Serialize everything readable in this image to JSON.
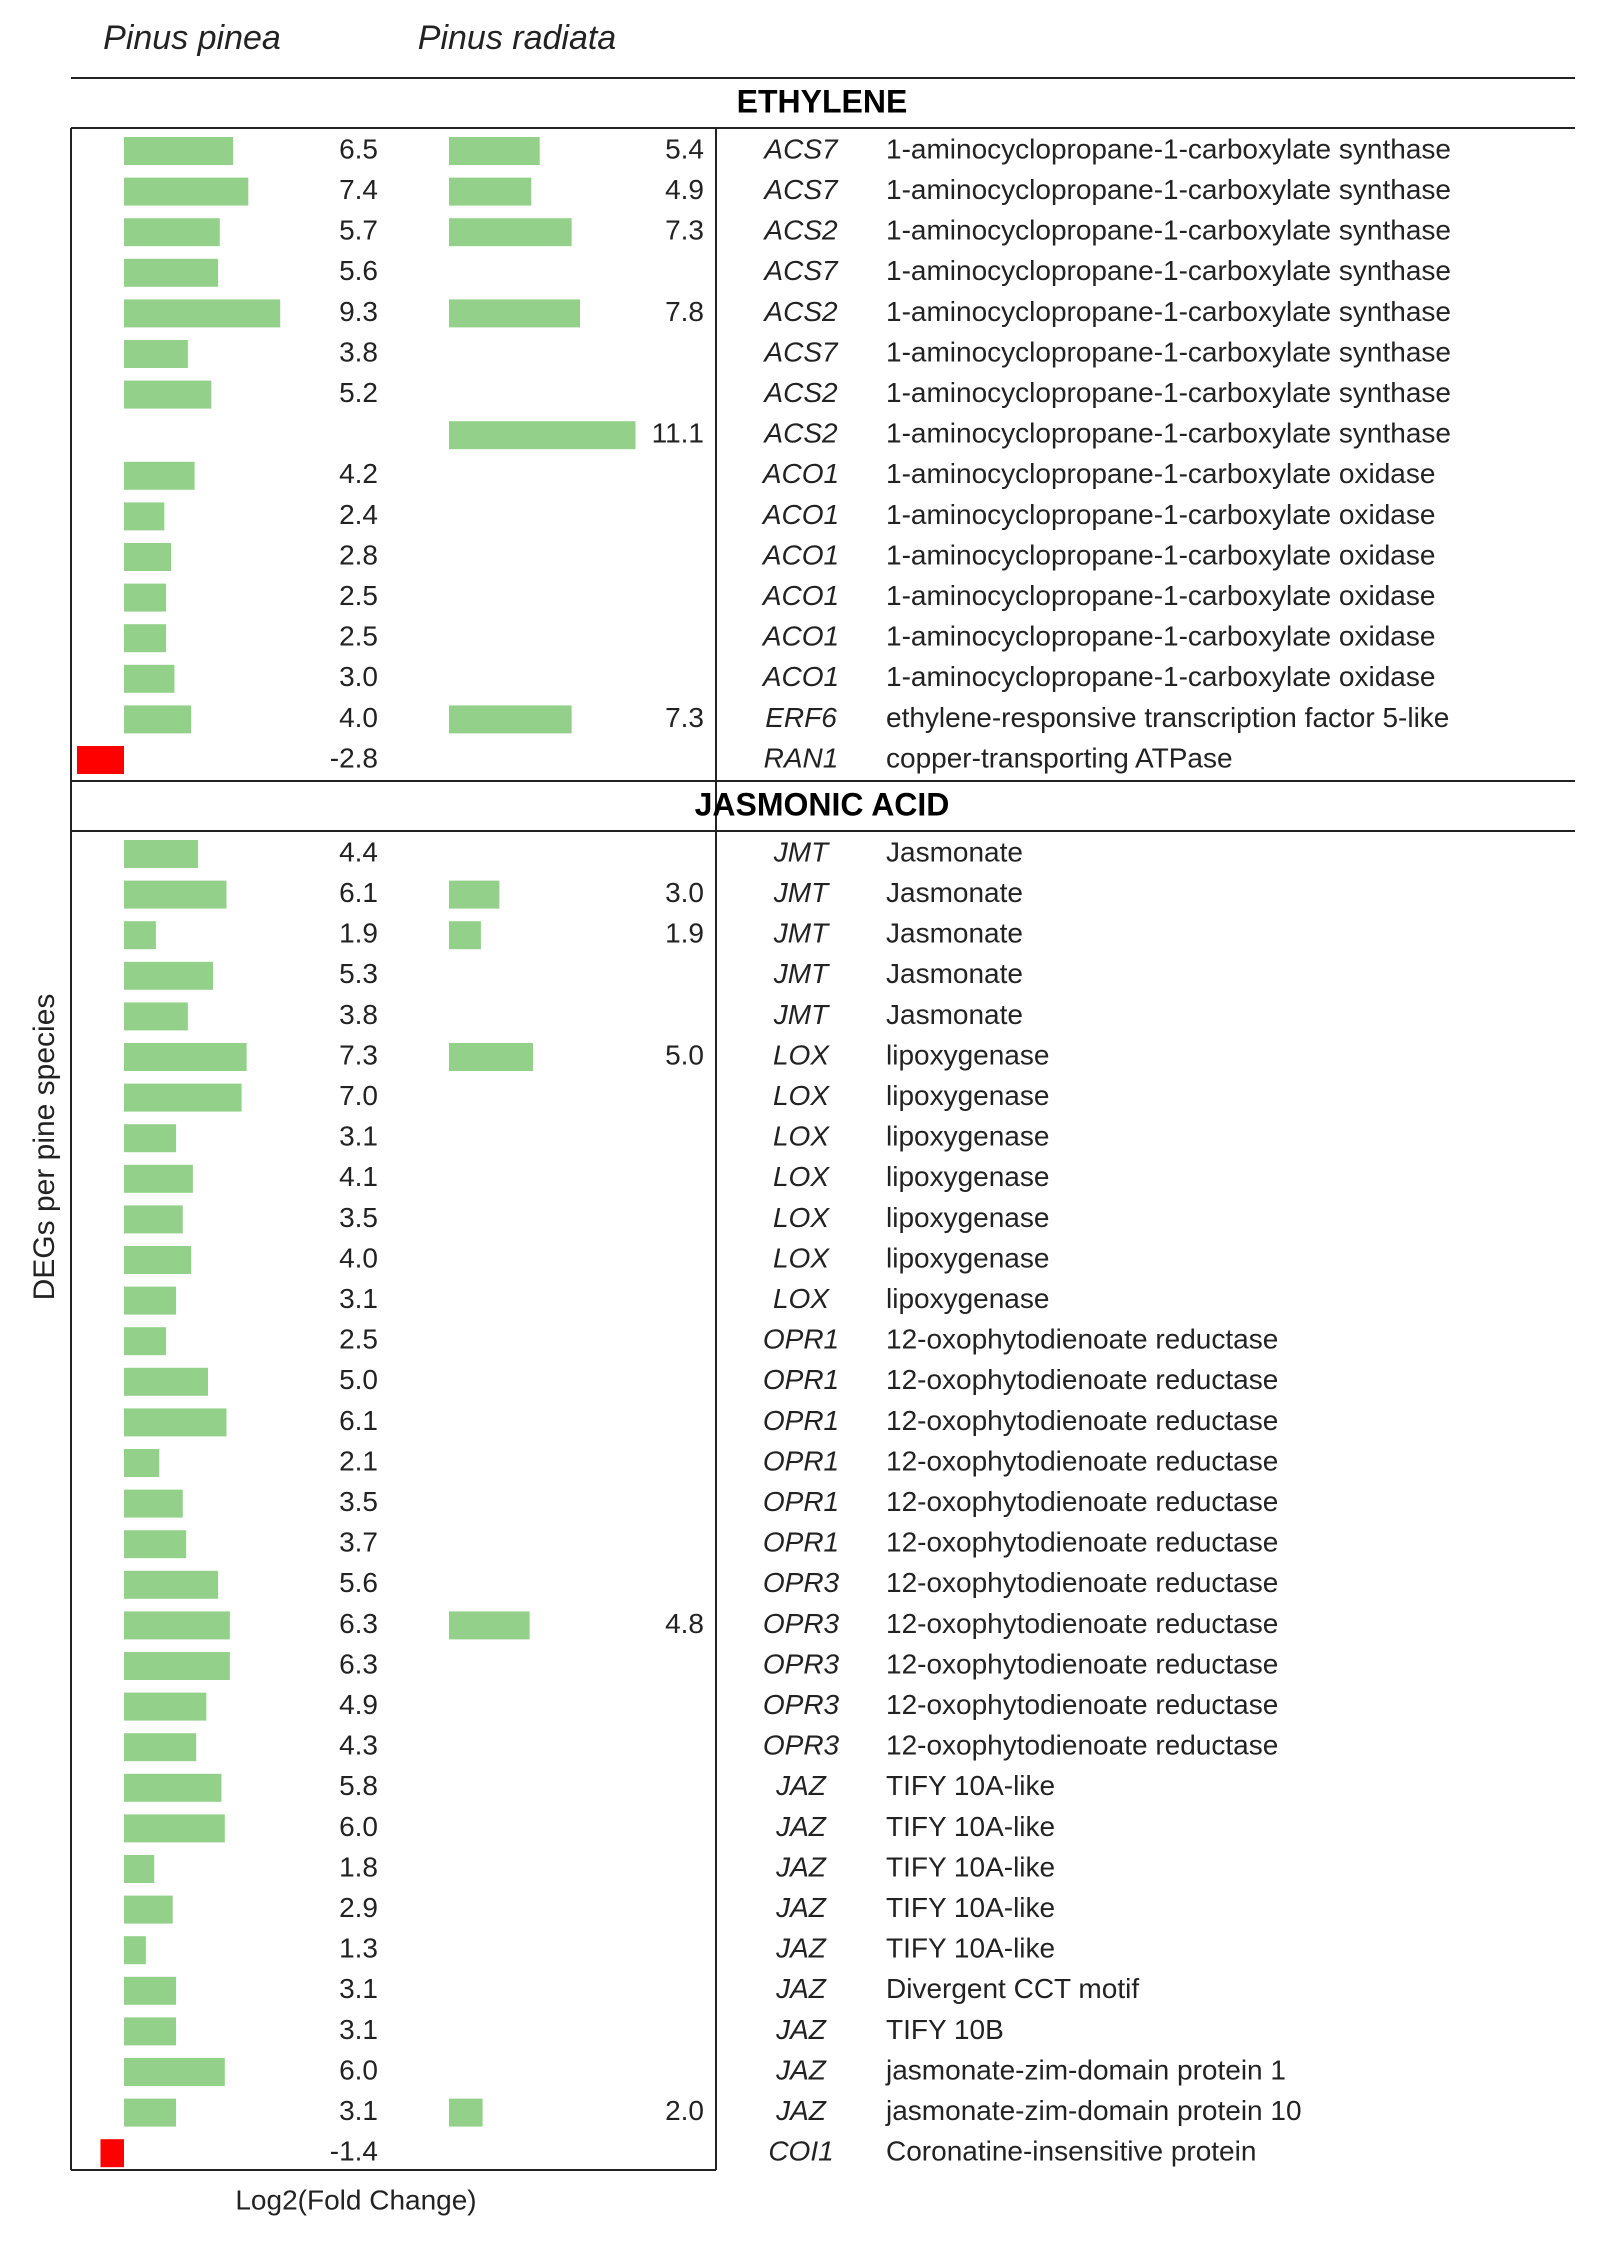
{
  "chart_data": {
    "type": "bar",
    "x_axis_label": "Log2(Fold Change)",
    "y_axis_label": "DEGs per pine species",
    "series": [
      {
        "name": "Pinus pinea",
        "color": "#93d18b"
      },
      {
        "name": "Pinus radiata",
        "color": "#93d18b"
      }
    ],
    "negative_color": "#ff0000",
    "sections": [
      {
        "title": "ETHYLENE",
        "genes": [
          "ACS7",
          "ACS7",
          "ACS2",
          "ACS7",
          "ACS2",
          "ACS7",
          "ACS2",
          "ACS2",
          "ACO1",
          "ACO1",
          "ACO1",
          "ACO1",
          "ACO1",
          "ACO1",
          "ERF6",
          "RAN1"
        ],
        "descriptions": [
          "1-aminocyclopropane-1-carboxylate synthase",
          "1-aminocyclopropane-1-carboxylate synthase",
          "1-aminocyclopropane-1-carboxylate synthase",
          "1-aminocyclopropane-1-carboxylate synthase",
          "1-aminocyclopropane-1-carboxylate synthase",
          "1-aminocyclopropane-1-carboxylate synthase",
          "1-aminocyclopropane-1-carboxylate synthase",
          "1-aminocyclopropane-1-carboxylate synthase",
          "1-aminocyclopropane-1-carboxylate oxidase",
          "1-aminocyclopropane-1-carboxylate oxidase",
          "1-aminocyclopropane-1-carboxylate oxidase",
          "1-aminocyclopropane-1-carboxylate oxidase",
          "1-aminocyclopropane-1-carboxylate oxidase",
          "1-aminocyclopropane-1-carboxylate oxidase",
          "ethylene-responsive transcription factor 5-like",
          "copper-transporting ATPase"
        ],
        "series": [
          {
            "values": [
              6.5,
              7.4,
              5.7,
              5.6,
              9.3,
              3.8,
              5.2,
              null,
              4.2,
              2.4,
              2.8,
              2.5,
              2.5,
              3.0,
              4.0,
              -2.8
            ],
            "value_labels": [
              "6.5",
              "7.4",
              "5.7",
              "5.6",
              "9.3",
              "3.8",
              "5.2",
              null,
              "4.2",
              "2.4",
              "2.8",
              "2.5",
              "2.5",
              "3.0",
              "4.0",
              "-2.8"
            ]
          },
          {
            "values": [
              5.4,
              4.9,
              7.3,
              null,
              7.8,
              null,
              null,
              11.1,
              null,
              null,
              null,
              null,
              null,
              null,
              7.3,
              null
            ],
            "value_labels": [
              "5.4",
              "4.9",
              "7.3",
              null,
              "7.8",
              null,
              null,
              "11.1",
              null,
              null,
              null,
              null,
              null,
              null,
              "7.3",
              null
            ]
          }
        ]
      },
      {
        "title": "JASMONIC ACID",
        "genes": [
          "JMT",
          "JMT",
          "JMT",
          "JMT",
          "JMT",
          "LOX",
          "LOX",
          "LOX",
          "LOX",
          "LOX",
          "LOX",
          "LOX",
          "OPR1",
          "OPR1",
          "OPR1",
          "OPR1",
          "OPR1",
          "OPR1",
          "OPR3",
          "OPR3",
          "OPR3",
          "OPR3",
          "OPR3",
          "JAZ",
          "JAZ",
          "JAZ",
          "JAZ",
          "JAZ",
          "JAZ",
          "JAZ",
          "JAZ",
          "JAZ",
          "COI1"
        ],
        "descriptions": [
          "Jasmonate",
          "Jasmonate",
          "Jasmonate",
          "Jasmonate",
          "Jasmonate",
          "lipoxygenase",
          "lipoxygenase",
          "lipoxygenase",
          "lipoxygenase",
          "lipoxygenase",
          "lipoxygenase",
          "lipoxygenase",
          "12-oxophytodienoate reductase",
          "12-oxophytodienoate reductase",
          "12-oxophytodienoate reductase",
          "12-oxophytodienoate reductase",
          "12-oxophytodienoate reductase",
          "12-oxophytodienoate reductase",
          "12-oxophytodienoate reductase",
          "12-oxophytodienoate reductase",
          "12-oxophytodienoate reductase",
          "12-oxophytodienoate reductase",
          "12-oxophytodienoate reductase",
          "TIFY 10A-like",
          "TIFY 10A-like",
          "TIFY 10A-like",
          "TIFY 10A-like",
          "TIFY 10A-like",
          "Divergent CCT motif",
          "TIFY 10B",
          "jasmonate-zim-domain protein 1",
          "jasmonate-zim-domain protein 10",
          "Coronatine-insensitive protein"
        ],
        "series": [
          {
            "values": [
              4.4,
              6.1,
              1.9,
              5.3,
              3.8,
              7.3,
              7.0,
              3.1,
              4.1,
              3.5,
              4.0,
              3.1,
              2.5,
              5.0,
              6.1,
              2.1,
              3.5,
              3.7,
              5.6,
              6.3,
              6.3,
              4.9,
              4.3,
              5.8,
              6.0,
              1.8,
              2.9,
              1.3,
              3.1,
              3.1,
              6.0,
              3.1,
              -1.4
            ],
            "value_labels": [
              "4.4",
              "6.1",
              "1.9",
              "5.3",
              "3.8",
              "7.3",
              "7.0",
              "3.1",
              "4.1",
              "3.5",
              "4.0",
              "3.1",
              "2.5",
              "5.0",
              "6.1",
              "2.1",
              "3.5",
              "3.7",
              "5.6",
              "6.3",
              "6.3",
              "4.9",
              "4.3",
              "5.8",
              "6.0",
              "1.8",
              "2.9",
              "1.3",
              "3.1",
              "3.1",
              "6.0",
              "3.1",
              "-1.4"
            ]
          },
          {
            "values": [
              null,
              3.0,
              1.9,
              null,
              null,
              5.0,
              null,
              null,
              null,
              null,
              null,
              null,
              null,
              null,
              null,
              null,
              null,
              null,
              null,
              4.8,
              null,
              null,
              null,
              null,
              null,
              null,
              null,
              null,
              null,
              null,
              null,
              2.0,
              null
            ],
            "value_labels": [
              null,
              "3.0",
              "1.9",
              null,
              null,
              "5.0",
              null,
              null,
              null,
              null,
              null,
              null,
              null,
              null,
              null,
              null,
              null,
              null,
              null,
              "4.8",
              null,
              null,
              null,
              null,
              null,
              null,
              null,
              null,
              null,
              null,
              null,
              "2.0",
              null
            ]
          }
        ]
      }
    ]
  }
}
